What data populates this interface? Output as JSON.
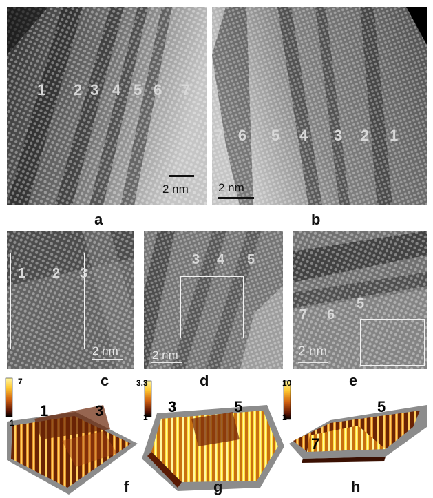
{
  "panels": {
    "a": {
      "letter": "a",
      "labels": [
        "1",
        "2",
        "3",
        "4",
        "5",
        "6",
        "7"
      ],
      "scale": "2 nm"
    },
    "b": {
      "letter": "b",
      "labels": [
        "7",
        "6",
        "5",
        "4",
        "3",
        "2",
        "1"
      ],
      "scale": "2 nm"
    },
    "c": {
      "letter": "c",
      "labels": [
        "1",
        "2",
        "3"
      ],
      "scale": "2 nm"
    },
    "d": {
      "letter": "d",
      "labels": [
        "3",
        "4",
        "5"
      ],
      "scale": "2 nm"
    },
    "e": {
      "letter": "e",
      "labels": [
        "7",
        "6",
        "5"
      ],
      "scale": "2 nm"
    },
    "f": {
      "letter": "f",
      "cb_max": "7",
      "cb_min": "1",
      "labels": [
        "1",
        "3"
      ]
    },
    "g": {
      "letter": "g",
      "cb_max": "3.3",
      "cb_min": "1",
      "labels": [
        "3",
        "5"
      ]
    },
    "h": {
      "letter": "h",
      "cb_max": "10",
      "cb_min": "1",
      "labels": [
        "5",
        "7"
      ]
    }
  },
  "colors": {
    "afm_dark": "#5a1a04",
    "afm_mid": "#c8601a",
    "afm_light": "#ffe640",
    "plate": "#8c8c8c"
  }
}
